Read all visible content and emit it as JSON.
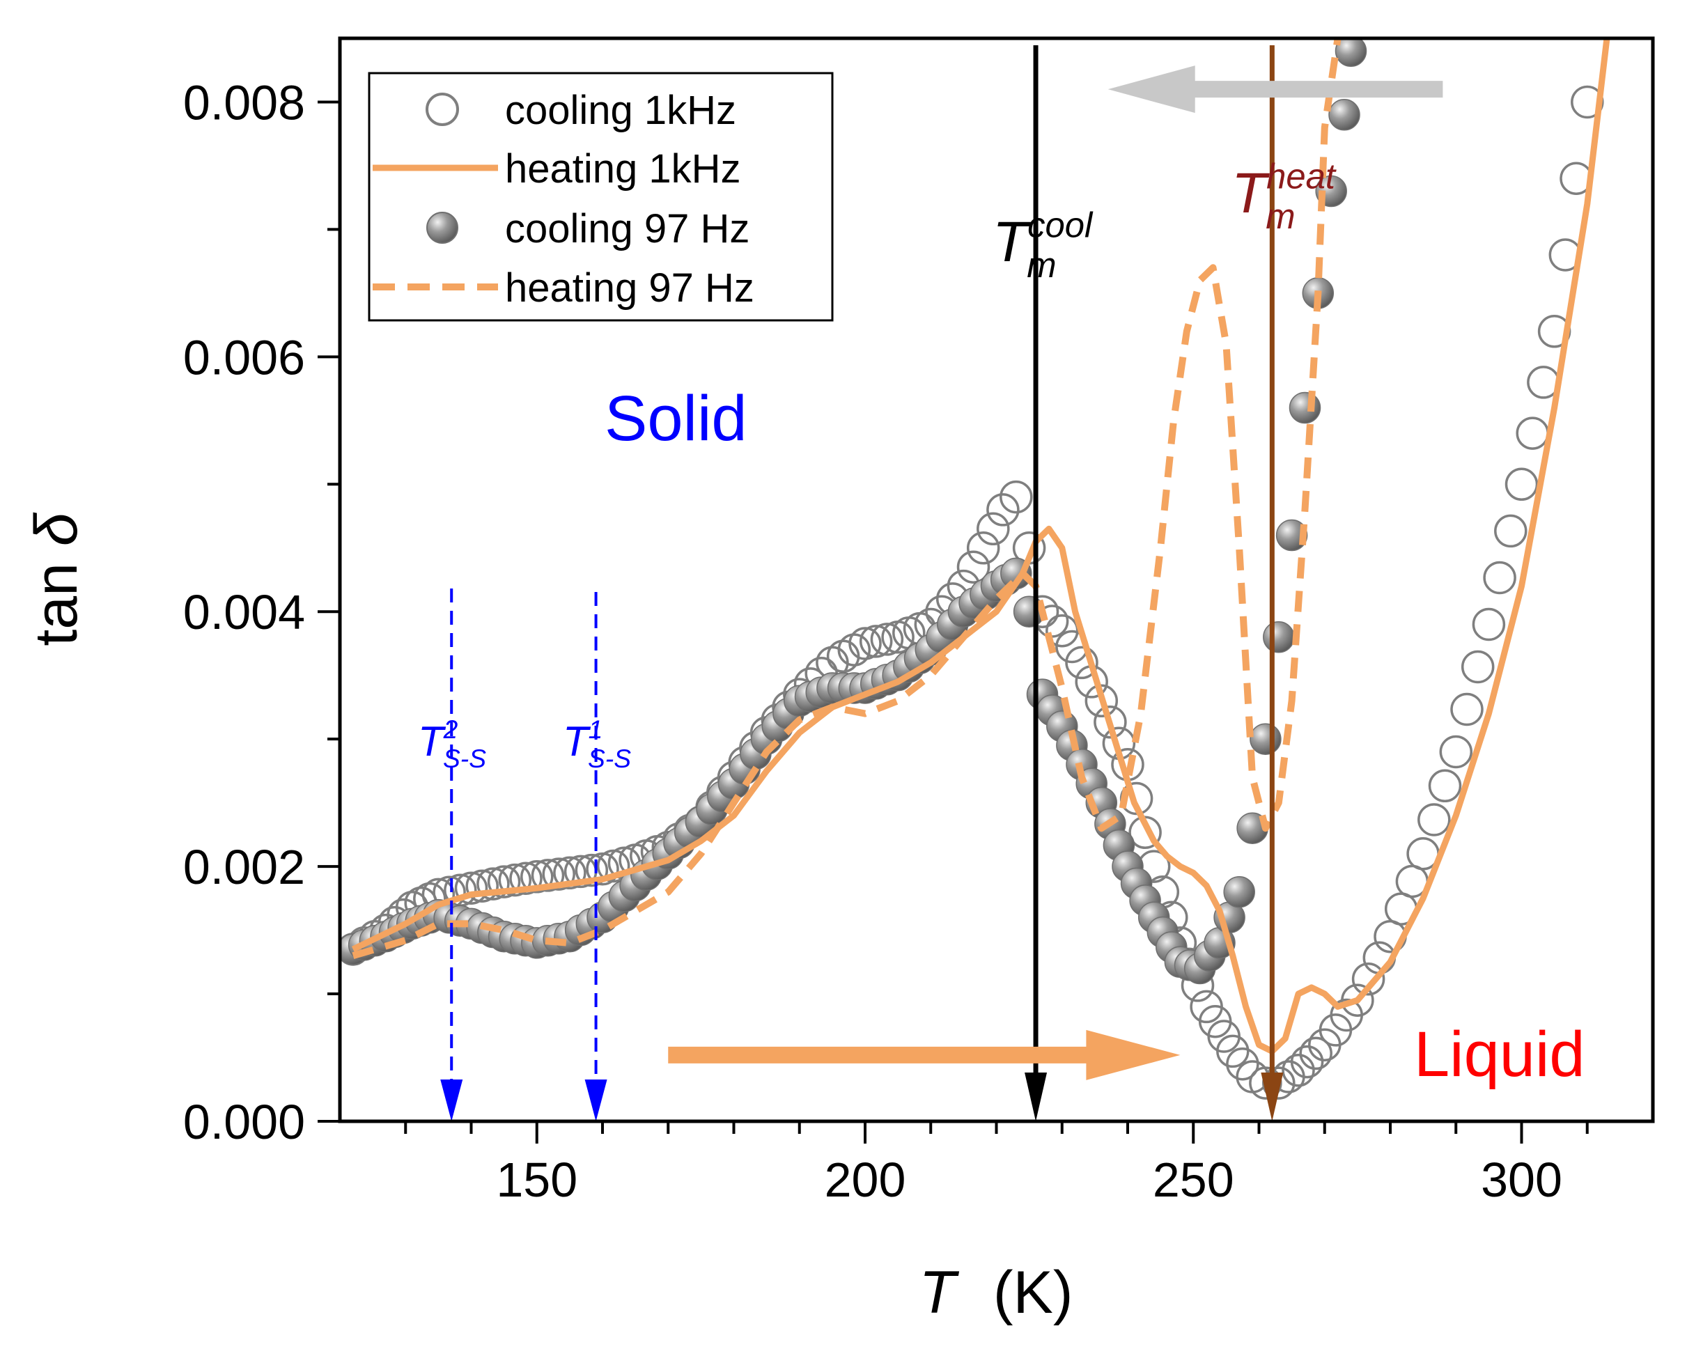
{
  "chart_data": {
    "type": "scatter",
    "title": "",
    "xlabel": "T",
    "xlabel_unit": "(K)",
    "ylabel": "tan",
    "ylabel_symbol": "δ",
    "xlim": [
      120,
      320
    ],
    "ylim": [
      0,
      0.0085
    ],
    "x_ticks": [
      150,
      200,
      250,
      300
    ],
    "x_tick_labels": [
      "150",
      "200",
      "250",
      "300"
    ],
    "y_ticks": [
      0,
      0.002,
      0.004,
      0.006,
      0.008
    ],
    "y_tick_labels": [
      "0.000",
      "0.002",
      "0.004",
      "0.006",
      "0.008"
    ],
    "legend_position": "top-left",
    "colors": {
      "cooling_1k": "#7f7f7f",
      "heating": "#f4a460",
      "cooling_97": "#8c8c8c",
      "tm_cool": "#000000",
      "tm_heat": "#8b4513",
      "tm_heat_label": "#8b1a1a",
      "tss": "#0000ff",
      "solid": "#0000ff",
      "liquid": "#ff0000",
      "arrow_cool": "#c8c8c8",
      "arrow_heat": "#f4a460"
    },
    "series": [
      {
        "name": "cooling 1kHz",
        "style": "open-circle",
        "x": [
          122,
          127,
          131,
          135,
          140,
          145,
          150,
          155,
          160,
          165,
          170,
          175,
          180,
          185,
          190,
          195,
          200,
          205,
          210,
          215,
          218,
          221,
          223,
          225,
          227,
          230,
          233,
          236,
          240,
          244,
          248,
          252,
          256,
          259,
          261,
          263,
          266,
          270,
          275,
          280,
          285,
          290,
          295,
          300,
          305,
          310
        ],
        "y": [
          0.00135,
          0.0015,
          0.00168,
          0.00178,
          0.00183,
          0.00188,
          0.00192,
          0.00195,
          0.00198,
          0.00205,
          0.00215,
          0.00235,
          0.0027,
          0.00305,
          0.00335,
          0.0036,
          0.00375,
          0.0038,
          0.0039,
          0.0042,
          0.0045,
          0.0048,
          0.0049,
          0.0045,
          0.004,
          0.00385,
          0.0036,
          0.0033,
          0.0028,
          0.002,
          0.0014,
          0.0009,
          0.00055,
          0.00035,
          0.0003,
          0.0003,
          0.0004,
          0.0006,
          0.00095,
          0.00145,
          0.0021,
          0.0029,
          0.0039,
          0.005,
          0.0062,
          0.008
        ]
      },
      {
        "name": "heating 1kHz",
        "style": "solid-line",
        "x": [
          122,
          130,
          135,
          140,
          150,
          160,
          170,
          175,
          180,
          185,
          190,
          195,
          200,
          205,
          210,
          215,
          220,
          224,
          226,
          228,
          230,
          232,
          235,
          238,
          241,
          244,
          246,
          248,
          250,
          252,
          254,
          256,
          258,
          260,
          262,
          264,
          266,
          268,
          270,
          272,
          275,
          280,
          285,
          290,
          295,
          300,
          305,
          310,
          313
        ],
        "y": [
          0.00135,
          0.00155,
          0.0017,
          0.00178,
          0.00183,
          0.0019,
          0.00205,
          0.0022,
          0.0024,
          0.00275,
          0.00305,
          0.00325,
          0.00335,
          0.00345,
          0.0036,
          0.0038,
          0.004,
          0.0043,
          0.00455,
          0.00465,
          0.0045,
          0.004,
          0.0035,
          0.003,
          0.0025,
          0.0022,
          0.00208,
          0.002,
          0.00195,
          0.00185,
          0.00165,
          0.0013,
          0.0009,
          0.0006,
          0.00055,
          0.00065,
          0.001,
          0.00105,
          0.001,
          0.0009,
          0.00095,
          0.00125,
          0.00175,
          0.0024,
          0.0032,
          0.0042,
          0.0056,
          0.0072,
          0.0085
        ]
      },
      {
        "name": "cooling 97 Hz",
        "style": "filled-circle",
        "x": [
          122,
          127,
          131,
          135,
          140,
          145,
          150,
          155,
          160,
          165,
          170,
          175,
          180,
          185,
          190,
          195,
          200,
          205,
          210,
          215,
          220,
          223,
          225,
          227,
          230,
          233,
          236,
          240,
          244,
          248,
          251,
          254,
          257,
          259,
          261,
          263,
          265,
          267,
          269,
          271,
          273,
          274
        ],
        "y": [
          0.00135,
          0.00145,
          0.00155,
          0.00162,
          0.00155,
          0.00145,
          0.0014,
          0.00145,
          0.0016,
          0.00185,
          0.0021,
          0.00235,
          0.00265,
          0.003,
          0.0033,
          0.0034,
          0.0034,
          0.0035,
          0.0037,
          0.004,
          0.0042,
          0.0043,
          0.004,
          0.00335,
          0.0031,
          0.0028,
          0.0025,
          0.002,
          0.0016,
          0.00125,
          0.0012,
          0.0014,
          0.0018,
          0.0023,
          0.003,
          0.0038,
          0.0046,
          0.0056,
          0.0065,
          0.0073,
          0.0079,
          0.0084
        ]
      },
      {
        "name": "heating 97 Hz",
        "style": "dashed-line",
        "x": [
          122,
          130,
          135,
          140,
          145,
          150,
          155,
          160,
          170,
          175,
          180,
          185,
          190,
          195,
          200,
          205,
          210,
          215,
          220,
          224,
          226,
          228,
          230,
          233,
          236,
          239,
          242,
          245,
          247,
          249,
          251,
          253,
          255,
          257,
          259,
          261,
          263,
          265,
          267,
          269,
          270,
          272
        ],
        "y": [
          0.0013,
          0.00142,
          0.00155,
          0.00155,
          0.0015,
          0.00142,
          0.0014,
          0.0015,
          0.0018,
          0.0021,
          0.0025,
          0.0029,
          0.00315,
          0.00325,
          0.0032,
          0.0033,
          0.0035,
          0.0038,
          0.0041,
          0.0043,
          0.0042,
          0.0038,
          0.0034,
          0.0027,
          0.0023,
          0.0024,
          0.0032,
          0.0045,
          0.0055,
          0.0062,
          0.0066,
          0.0067,
          0.0061,
          0.0045,
          0.0027,
          0.0023,
          0.0025,
          0.0033,
          0.0048,
          0.0065,
          0.0078,
          0.0085
        ]
      }
    ],
    "annotations": {
      "tm_cool": {
        "label": "T",
        "sub": "m",
        "sup": "cool",
        "x": 226
      },
      "tm_heat": {
        "label": "T",
        "sub": "m",
        "sup": "heat",
        "x": 262
      },
      "tss2": {
        "label": "T",
        "sub": "S-S",
        "sup": "2",
        "x": 137
      },
      "tss1": {
        "label": "T",
        "sub": "S-S",
        "sup": "1",
        "x": 159
      },
      "solid": "Solid",
      "liquid": "Liquid",
      "cool_arrow": {
        "x_from": 288,
        "x_to": 237,
        "y": 0.0081
      },
      "heat_arrow": {
        "x_from": 170,
        "x_to": 248,
        "y": 0.00052
      }
    }
  }
}
